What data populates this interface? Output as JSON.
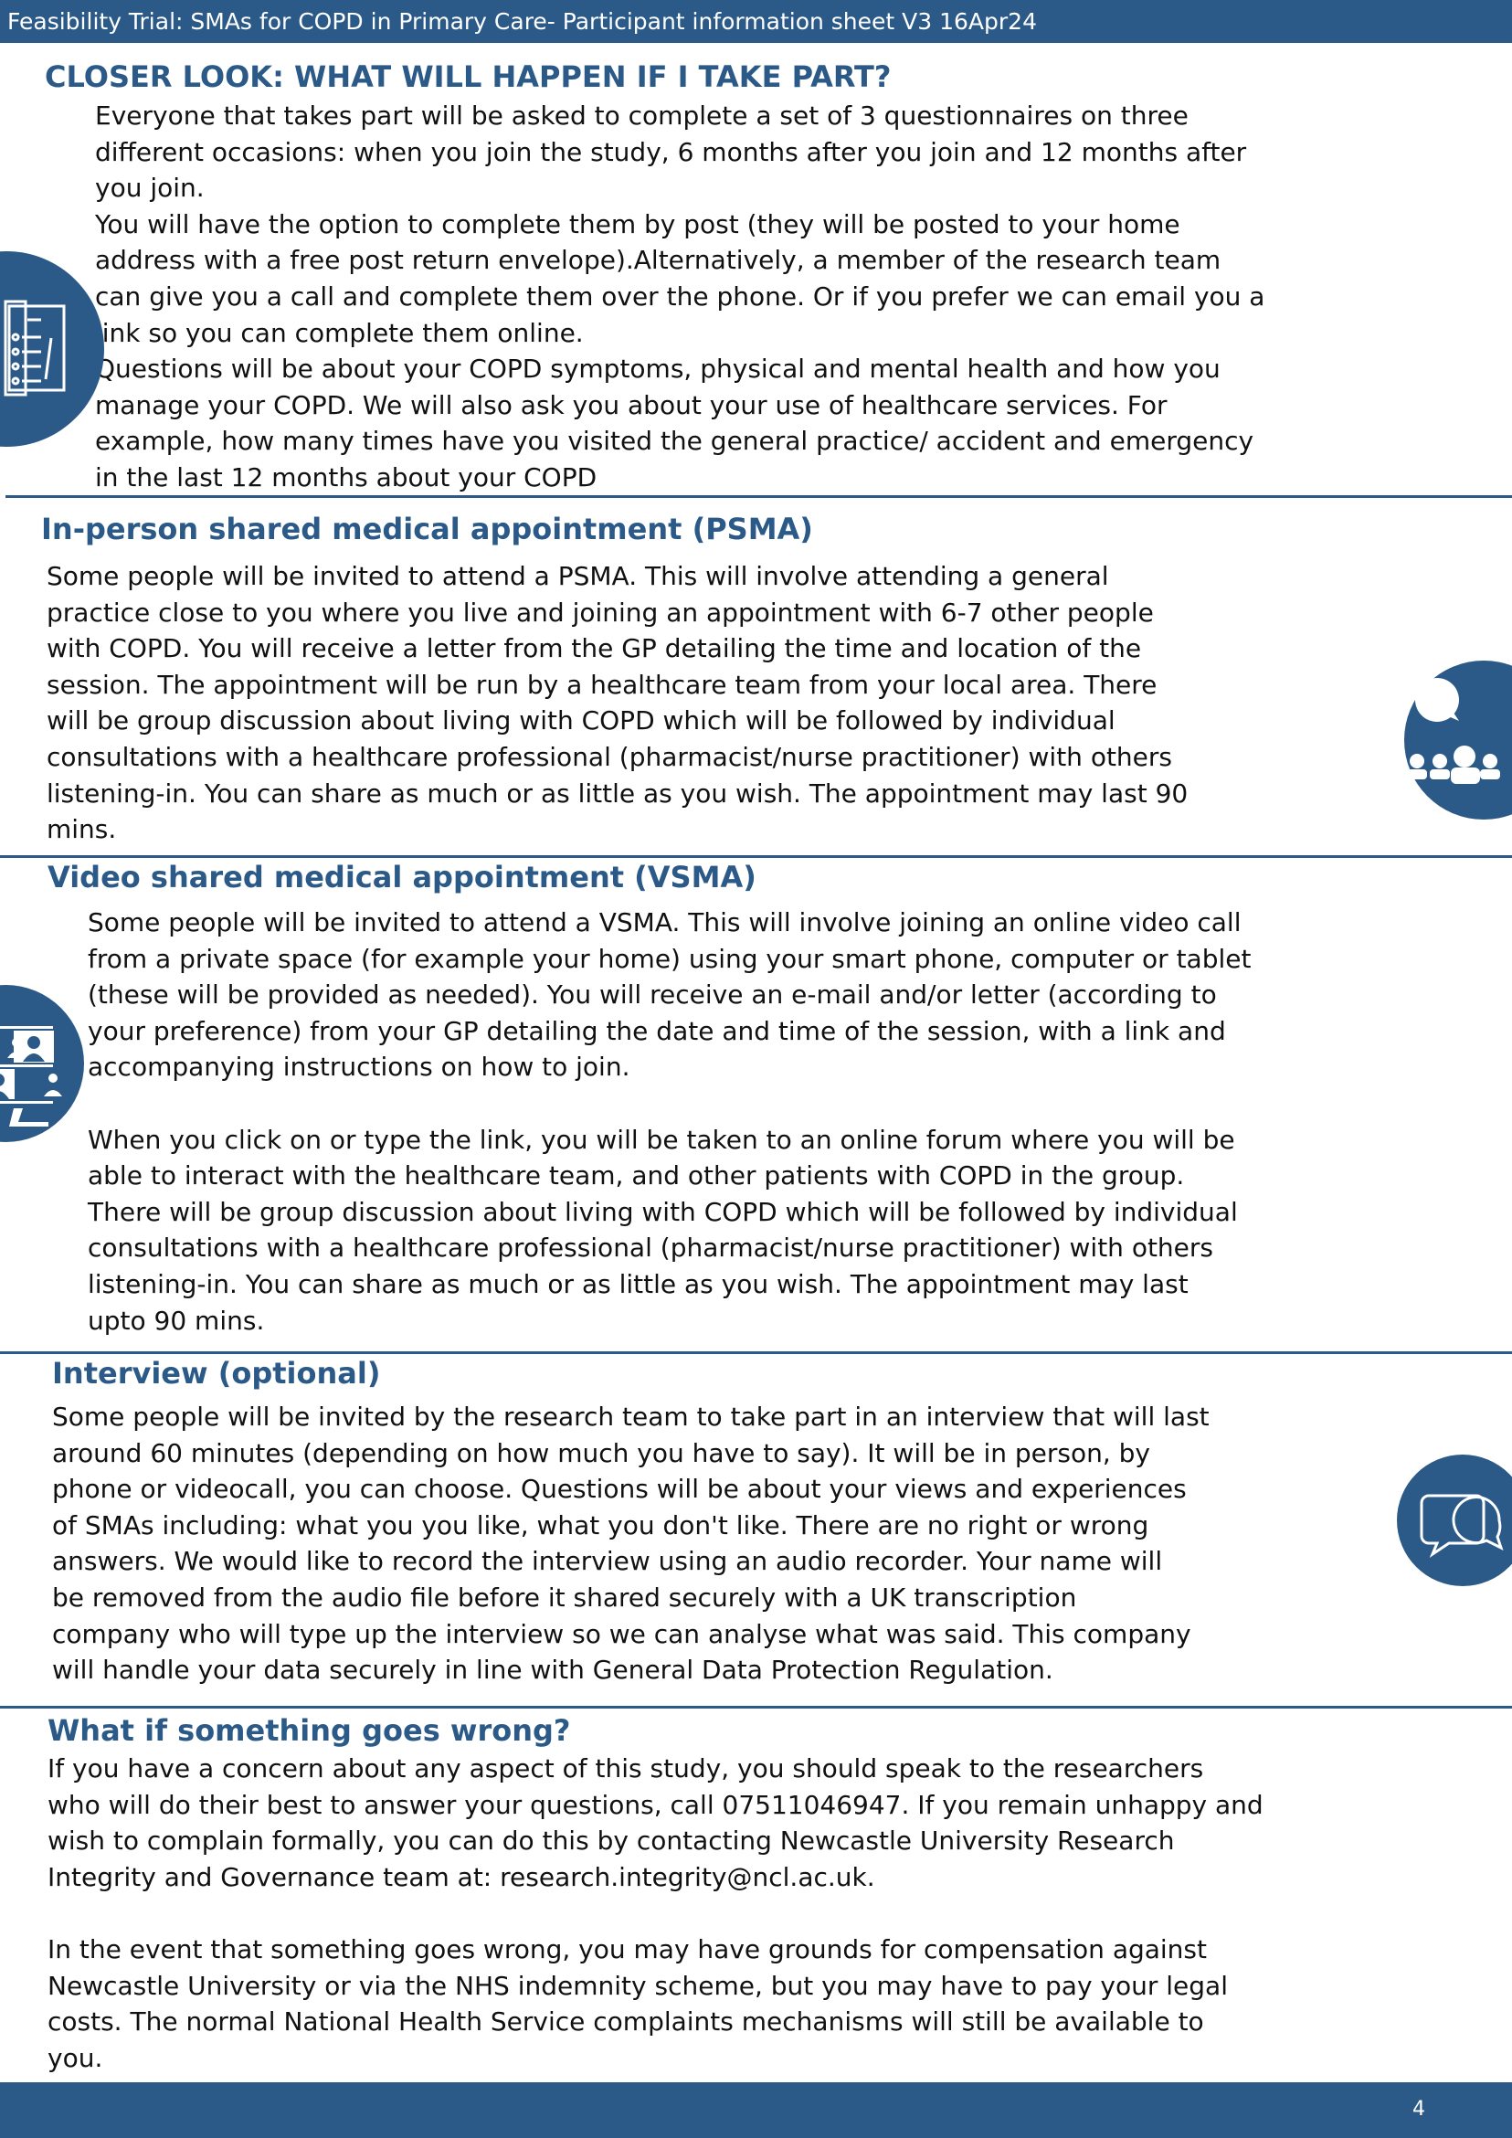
{
  "header": {
    "title": "Feasibility Trial: SMAs for COPD in Primary Care- Participant information sheet V3 16Apr24"
  },
  "colors": {
    "brand": "#2b5a88"
  },
  "closer_look": {
    "heading": "CLOSER LOOK: WHAT WILL HAPPEN IF I TAKE PART?",
    "icon": "questionnaire-checklist-icon",
    "lines": [
      "Everyone that takes part will be asked to complete a set of 3 questionnaires on three",
      "different occasions: when you join the study,  6 months after you join and  12 months after",
      "you join.",
      "You will have the option to complete them by post (they will be posted to your home",
      "address with a free post return envelope).Alternatively, a member of the research team",
      "can give you a call and complete them over the phone. Or if you prefer we can email you a",
      "link so you can complete them online.",
      "Questions will be about your COPD symptoms, physical and mental health and how you",
      "manage your COPD. We will also ask you about your use of healthcare services. For",
      "example, how many times have you visited the general practice/ accident and emergency",
      "in the last 12 months about your COPD"
    ]
  },
  "psma": {
    "heading": "In-person shared medical appointment (PSMA)",
    "icon": "group-discussion-icon",
    "lines": [
      "Some people will be invited to attend a PSMA. This will involve attending a general",
      "practice close to you where you live and joining an appointment with 6-7 other people",
      "with COPD. You will receive a letter from the GP detailing the time and location of the",
      "session. The appointment will be run by a healthcare team from your local area. There",
      "will be group discussion about living with COPD which will be followed by individual",
      "consultations with a healthcare professional (pharmacist/nurse practitioner) with others",
      "listening-in. You can share as much or as little as you wish. The appointment may last 90",
      "mins."
    ]
  },
  "vsma": {
    "heading": "Video shared medical appointment (VSMA)",
    "icon": "video-call-icon",
    "lines": [
      "Some people will be invited to attend a VSMA. This will involve joining an online video call",
      "from a private space (for example your home) using your smart phone, computer or tablet",
      "(these will be provided as needed). You will receive an e-mail and/or letter (according to",
      "your preference) from your GP detailing the date and time of the session, with a link and",
      "accompanying instructions on how to join.",
      "",
      "When you click on or type the link, you will be taken to an online forum where you will be",
      "able to interact with the healthcare team, and other patients with COPD in the group.",
      "There will be group discussion about living with COPD which will be followed by individual",
      "consultations with a healthcare professional (pharmacist/nurse practitioner) with others",
      "listening-in. You can share as much or as little as you wish. The appointment may last",
      "upto 90 mins."
    ]
  },
  "interview": {
    "heading": "Interview (optional)",
    "icon": "speech-bubbles-icon",
    "lines": [
      "Some people will be invited by the research team to take part in an interview that will last",
      "around 60 minutes (depending on how much you have to say).  It will be in person, by",
      "phone or videocall, you can choose. Questions will be about your views and experiences",
      "of SMAs including: what you you like, what you don't like. There are no right or wrong",
      "answers.  We would like to record the interview using an audio recorder. Your name will",
      "be removed from the audio file before it shared securely with a UK transcription",
      "company who will type up the interview so we can analyse what was said. This company",
      "will handle your data securely in line with General Data Protection Regulation."
    ]
  },
  "wrong": {
    "heading": "What if something goes wrong?",
    "lines": [
      "If you have a concern about any aspect of this study, you should speak to the researchers",
      "who will do their best to answer your questions, call 07511046947. If you remain unhappy and",
      "wish to complain formally, you can do this by contacting Newcastle University Research",
      "Integrity and Governance team at: research.integrity@ncl.ac.uk.",
      "",
      "In the event that something goes wrong, you may have grounds for compensation against",
      "Newcastle University or via the NHS indemnity scheme, but you may have to pay your legal",
      "costs. The normal National Health Service complaints mechanisms will still be available to",
      "you."
    ]
  },
  "footer": {
    "page_number": "4"
  }
}
